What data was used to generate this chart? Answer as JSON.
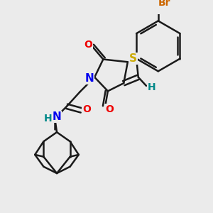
{
  "background_color": "#ebebeb",
  "line_color": "#1a1a1a",
  "lw": 1.8,
  "atom_colors": {
    "S": "#ccaa00",
    "N": "#0000ee",
    "O": "#ee0000",
    "H": "#008888",
    "Br": "#cc6600"
  },
  "font_size": 10
}
